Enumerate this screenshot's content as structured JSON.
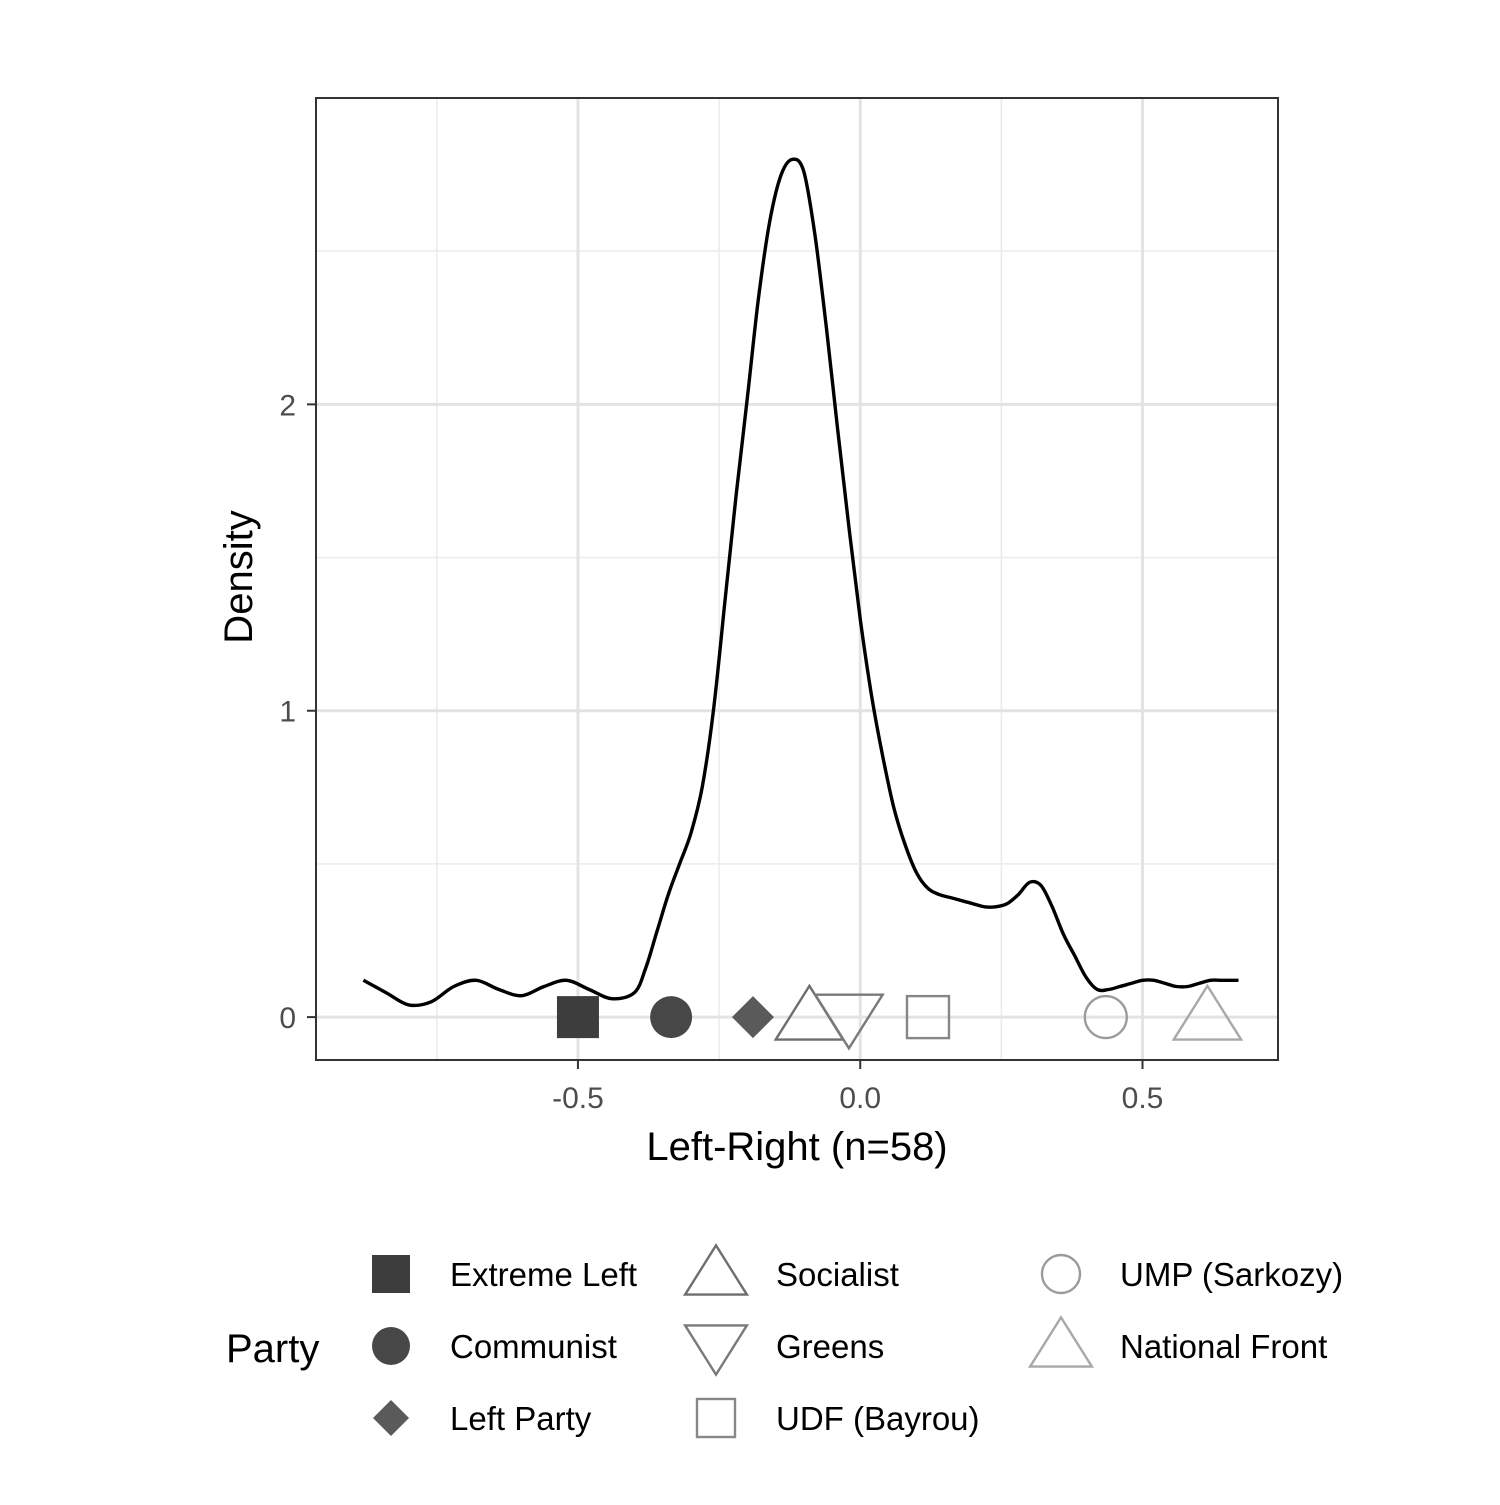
{
  "chart_data": {
    "type": "line",
    "title": "",
    "xlabel": "Left-Right (n=58)",
    "ylabel": "Density",
    "xlim": [
      -0.964,
      0.74
    ],
    "ylim": [
      -0.14,
      3.0
    ],
    "x_ticks": [
      -0.5,
      0.0,
      0.5
    ],
    "x_tick_labels": [
      "-0.5",
      "0.0",
      "0.5"
    ],
    "y_ticks": [
      0,
      1,
      2
    ],
    "y_tick_labels": [
      "0",
      "1",
      "2"
    ],
    "x_minor_ticks": [
      -0.75,
      -0.25,
      0.25
    ],
    "y_minor_ticks": [
      0.5,
      1.5,
      2.5
    ],
    "grid": true,
    "series": [
      {
        "type": "density",
        "color": "#000000",
        "x": [
          -0.88,
          -0.84,
          -0.8,
          -0.76,
          -0.72,
          -0.68,
          -0.64,
          -0.6,
          -0.56,
          -0.52,
          -0.48,
          -0.44,
          -0.4,
          -0.38,
          -0.36,
          -0.34,
          -0.32,
          -0.3,
          -0.28,
          -0.26,
          -0.24,
          -0.22,
          -0.2,
          -0.18,
          -0.16,
          -0.14,
          -0.12,
          -0.1,
          -0.08,
          -0.06,
          -0.04,
          -0.02,
          0.0,
          0.02,
          0.04,
          0.06,
          0.08,
          0.1,
          0.12,
          0.14,
          0.16,
          0.18,
          0.2,
          0.22,
          0.24,
          0.26,
          0.28,
          0.3,
          0.32,
          0.34,
          0.36,
          0.38,
          0.4,
          0.42,
          0.44,
          0.46,
          0.48,
          0.5,
          0.52,
          0.54,
          0.56,
          0.58,
          0.6,
          0.62,
          0.64,
          0.66,
          0.67
        ],
        "y": [
          0.12,
          0.08,
          0.04,
          0.05,
          0.1,
          0.12,
          0.09,
          0.07,
          0.1,
          0.12,
          0.09,
          0.06,
          0.08,
          0.16,
          0.28,
          0.4,
          0.5,
          0.6,
          0.75,
          1.0,
          1.35,
          1.7,
          2.02,
          2.35,
          2.6,
          2.75,
          2.8,
          2.76,
          2.55,
          2.25,
          1.92,
          1.6,
          1.3,
          1.05,
          0.85,
          0.68,
          0.56,
          0.47,
          0.42,
          0.4,
          0.39,
          0.38,
          0.37,
          0.36,
          0.36,
          0.37,
          0.4,
          0.44,
          0.43,
          0.36,
          0.27,
          0.2,
          0.13,
          0.09,
          0.09,
          0.1,
          0.11,
          0.12,
          0.12,
          0.11,
          0.1,
          0.1,
          0.11,
          0.12,
          0.12,
          0.12,
          0.12
        ]
      }
    ],
    "parties": [
      {
        "name": "Extreme Left",
        "x": -0.5,
        "shape": "square",
        "filled": true,
        "color": "#3d3d3d"
      },
      {
        "name": "Communist",
        "x": -0.335,
        "shape": "circle",
        "filled": true,
        "color": "#474747"
      },
      {
        "name": "Left Party",
        "x": -0.19,
        "shape": "diamond",
        "filled": true,
        "color": "#5a5a5a"
      },
      {
        "name": "Socialist",
        "x": -0.09,
        "shape": "triangle",
        "filled": false,
        "color": "#6e6e6e"
      },
      {
        "name": "Greens",
        "x": -0.02,
        "shape": "triangle-down",
        "filled": false,
        "color": "#7a7a7a"
      },
      {
        "name": "UDF (Bayrou)",
        "x": 0.12,
        "shape": "square",
        "filled": false,
        "color": "#878787"
      },
      {
        "name": "UMP (Sarkozy)",
        "x": 0.435,
        "shape": "circle",
        "filled": false,
        "color": "#9b9b9b"
      },
      {
        "name": "National Front",
        "x": 0.615,
        "shape": "triangle",
        "filled": false,
        "color": "#a8a8a8"
      }
    ],
    "legend": {
      "title": "Party",
      "placement": "bottom",
      "columns": 3
    }
  }
}
